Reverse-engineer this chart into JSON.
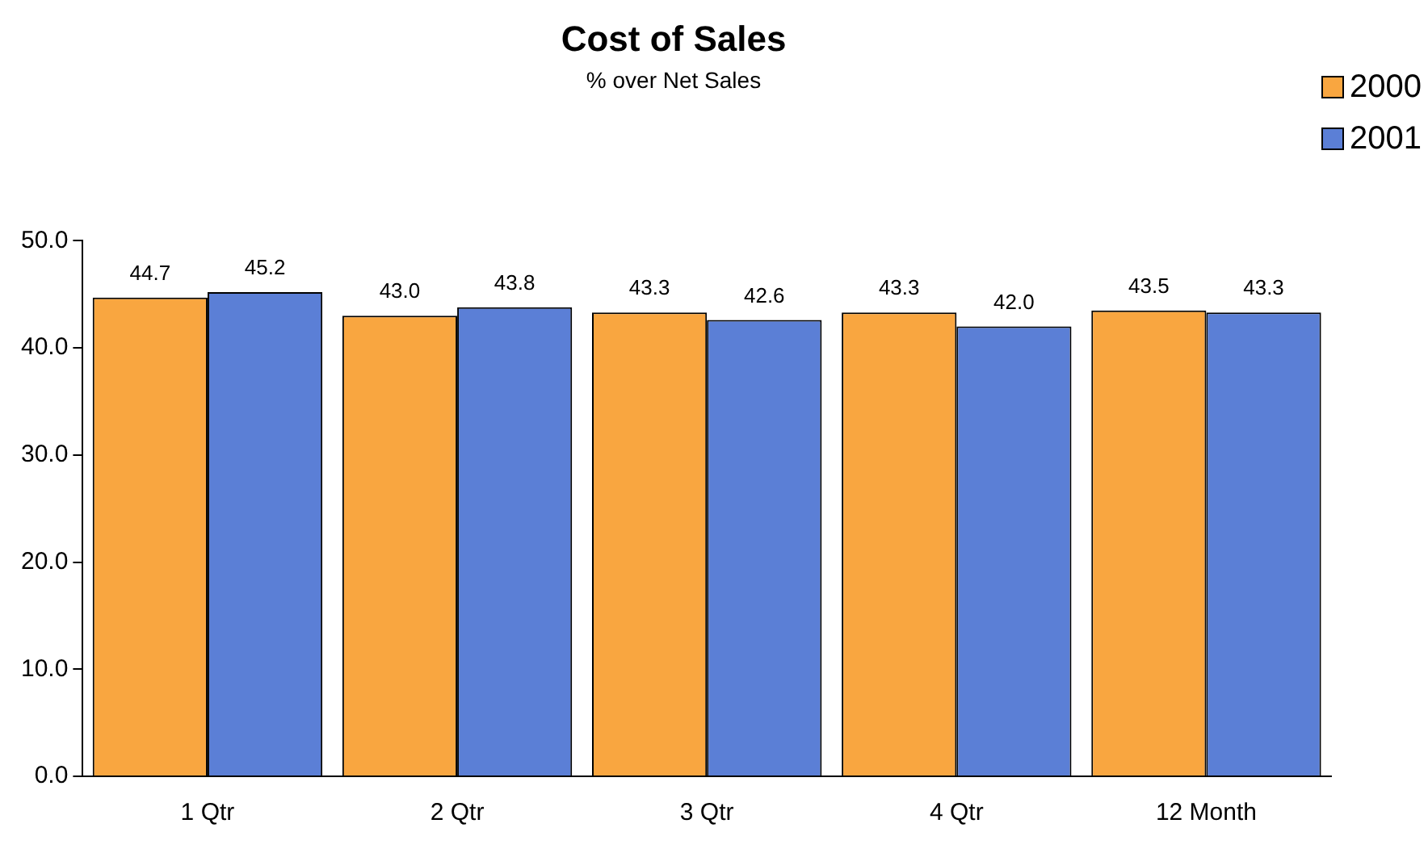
{
  "chart_data": {
    "type": "bar",
    "title": "Cost of Sales",
    "subtitle": "% over Net Sales",
    "categories": [
      "1 Qtr",
      "2 Qtr",
      "3 Qtr",
      "4 Qtr",
      "12 Month"
    ],
    "series": [
      {
        "name": "2000",
        "color": "#f9a640",
        "values": [
          44.7,
          43.0,
          43.3,
          43.3,
          43.5
        ],
        "value_labels": [
          "44.7",
          "43.0",
          "43.3",
          "43.3",
          "43.5"
        ]
      },
      {
        "name": "2001",
        "color": "#5b7fd6",
        "values": [
          45.2,
          43.8,
          42.6,
          42.0,
          43.3
        ],
        "value_labels": [
          "45.2",
          "43.8",
          "42.6",
          "42.0",
          "43.3"
        ]
      }
    ],
    "ylim": [
      0,
      50
    ],
    "yticks": [
      {
        "value": 0,
        "label": "0.0"
      },
      {
        "value": 10,
        "label": "10.0"
      },
      {
        "value": 20,
        "label": "20.0"
      },
      {
        "value": 30,
        "label": "30.0"
      },
      {
        "value": 40,
        "label": "40.0"
      },
      {
        "value": 50,
        "label": "50.0"
      }
    ],
    "grid": false,
    "legend": "top right"
  }
}
